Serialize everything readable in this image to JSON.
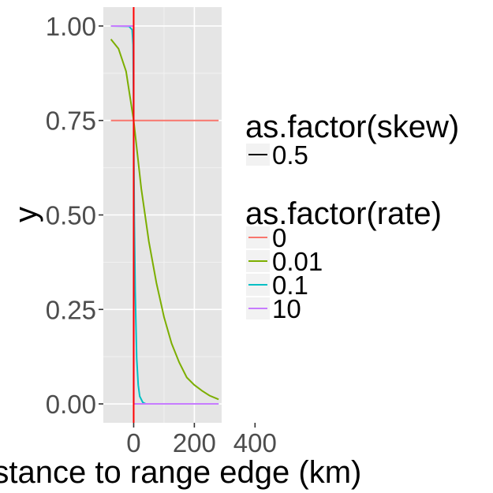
{
  "chart_data": {
    "type": "line",
    "xlabel": "Distance to range edge (km)",
    "ylabel": "y",
    "xlim": [
      -100,
      290
    ],
    "ylim": [
      -0.05,
      1.05
    ],
    "x_ticks": [
      0,
      200,
      400
    ],
    "x_tick_labels": [
      "0",
      "200",
      "400"
    ],
    "y_ticks": [
      0,
      0.25,
      0.5,
      0.75,
      1.0
    ],
    "y_tick_labels": [
      "0.00",
      "0.25",
      "0.50",
      "0.75",
      "1.00"
    ],
    "grid": true,
    "background": "#e5e5e5",
    "vline": {
      "x": 0,
      "color": "#ff0000"
    },
    "legends": [
      {
        "title": "as.factor(skew)",
        "entries": [
          {
            "label": "0.5",
            "color": "#000000"
          }
        ]
      },
      {
        "title": "as.factor(rate)",
        "entries": [
          {
            "label": "0",
            "color": "#f8766d"
          },
          {
            "label": "0.01",
            "color": "#7cae00"
          },
          {
            "label": "0.1",
            "color": "#00bfc4"
          },
          {
            "label": "10",
            "color": "#c77cff"
          }
        ]
      }
    ],
    "legend_position": "right",
    "series": [
      {
        "rate": "0",
        "color": "#f8766d",
        "x": [
          -75,
          280
        ],
        "y": [
          0.75,
          0.75
        ]
      },
      {
        "rate": "0.01",
        "color": "#7cae00",
        "x": [
          -75,
          -50,
          -25,
          0,
          25,
          50,
          75,
          100,
          125,
          150,
          175,
          200,
          225,
          250,
          280
        ],
        "y": [
          0.965,
          0.94,
          0.88,
          0.75,
          0.57,
          0.43,
          0.32,
          0.23,
          0.16,
          0.11,
          0.07,
          0.05,
          0.035,
          0.022,
          0.012
        ]
      },
      {
        "rate": "0.1",
        "color": "#00bfc4",
        "x": [
          -75,
          -15,
          -5,
          -2,
          0,
          2,
          5,
          10,
          15,
          20,
          30,
          40,
          280
        ],
        "y": [
          1.0,
          0.999,
          0.99,
          0.95,
          0.75,
          0.5,
          0.3,
          0.12,
          0.05,
          0.02,
          0.004,
          0.0,
          0.0
        ]
      },
      {
        "rate": "10",
        "color": "#c77cff",
        "x": [
          -75,
          -0.5,
          0,
          0.5,
          280
        ],
        "y": [
          1.0,
          1.0,
          0.75,
          0.0,
          0.0
        ]
      }
    ]
  }
}
